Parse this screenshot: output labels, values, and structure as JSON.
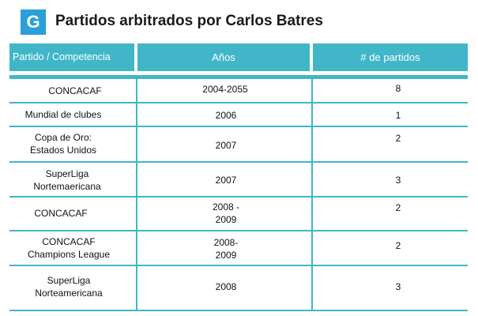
{
  "brand": {
    "logo_letter": "G",
    "accent": "#40b6c8",
    "logo_color": "#2a9fd8"
  },
  "title": "Partidos arbitrados por Carlos Batres",
  "table": {
    "headers": [
      "Partido / Competencia",
      "Años",
      "# de partidos"
    ],
    "rows": [
      {
        "competition": [
          "CONCACAF"
        ],
        "years": [
          "2004-2055"
        ],
        "matches": "8"
      },
      {
        "competition": [
          "Mundial de clubes"
        ],
        "years": [
          "2006"
        ],
        "matches": "1"
      },
      {
        "competition": [
          "Copa de Oro:",
          "Estados Unidos"
        ],
        "years": [
          "2007"
        ],
        "matches": "2"
      },
      {
        "competition": [
          "SuperLiga",
          "Nortemaericana"
        ],
        "years": [
          "2007"
        ],
        "matches": "3"
      },
      {
        "competition": [
          "CONCACAF"
        ],
        "years": [
          "2008 -",
          "2009"
        ],
        "matches": "2"
      },
      {
        "competition": [
          "CONCACAF",
          "Champions League"
        ],
        "years": [
          "2008-",
          "2009"
        ],
        "matches": "2"
      },
      {
        "competition": [
          "SuperLiga",
          "Norteamericana"
        ],
        "years": [
          "2008"
        ],
        "matches": "3"
      }
    ]
  }
}
